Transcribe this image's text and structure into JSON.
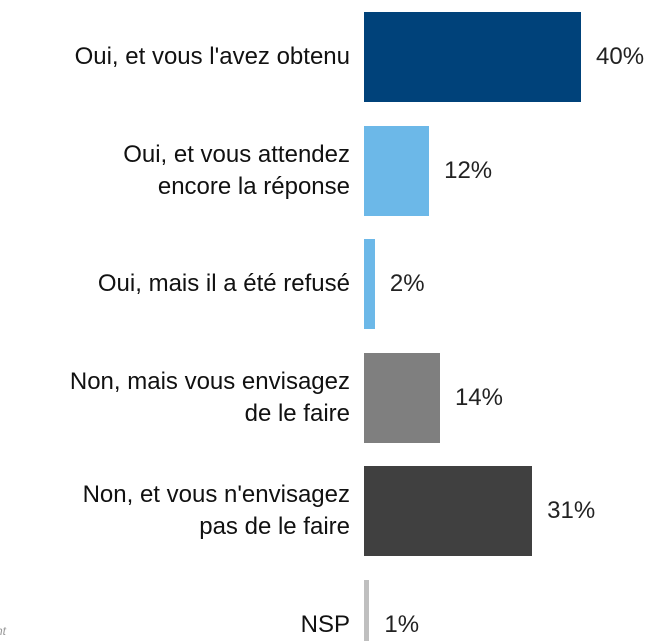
{
  "chart_data": {
    "type": "bar",
    "orientation": "horizontal",
    "categories": [
      "Oui, et vous l'avez obtenu",
      "Oui, et vous attendez\nencore la réponse",
      "Oui, mais il a été refusé",
      "Non, mais vous envisagez\nde le faire",
      "Non, et vous n'envisagez\npas de le faire",
      "NSP"
    ],
    "values": [
      40,
      12,
      2,
      14,
      31,
      1
    ],
    "value_labels": [
      "40%",
      "12%",
      "2%",
      "14%",
      "31%",
      "1%"
    ],
    "colors": [
      "#00427a",
      "#6cb8e8",
      "#6cb8e8",
      "#7f7f7f",
      "#404040",
      "#bfbfbf"
    ],
    "footnote": "nt"
  }
}
